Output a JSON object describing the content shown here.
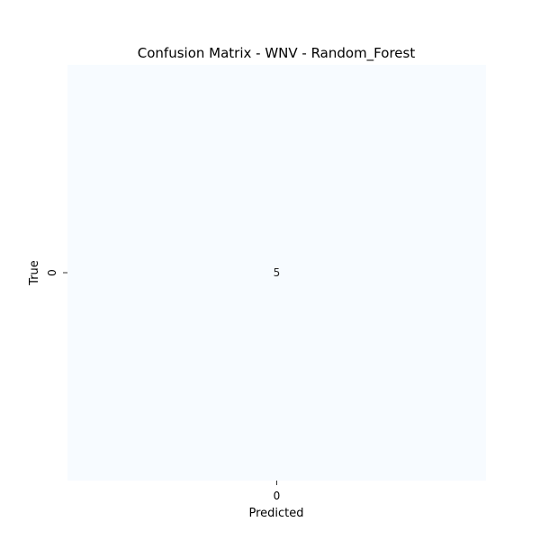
{
  "chart_data": {
    "type": "heatmap",
    "title": "Confusion Matrix - WNV - Random_Forest",
    "xlabel": "Predicted",
    "ylabel": "True",
    "x_categories": [
      "0"
    ],
    "y_categories": [
      "0"
    ],
    "values": [
      [
        5
      ]
    ],
    "colormap": "Blues",
    "cell_color": "#f7fbff",
    "colorbar": false,
    "annotations": true
  }
}
